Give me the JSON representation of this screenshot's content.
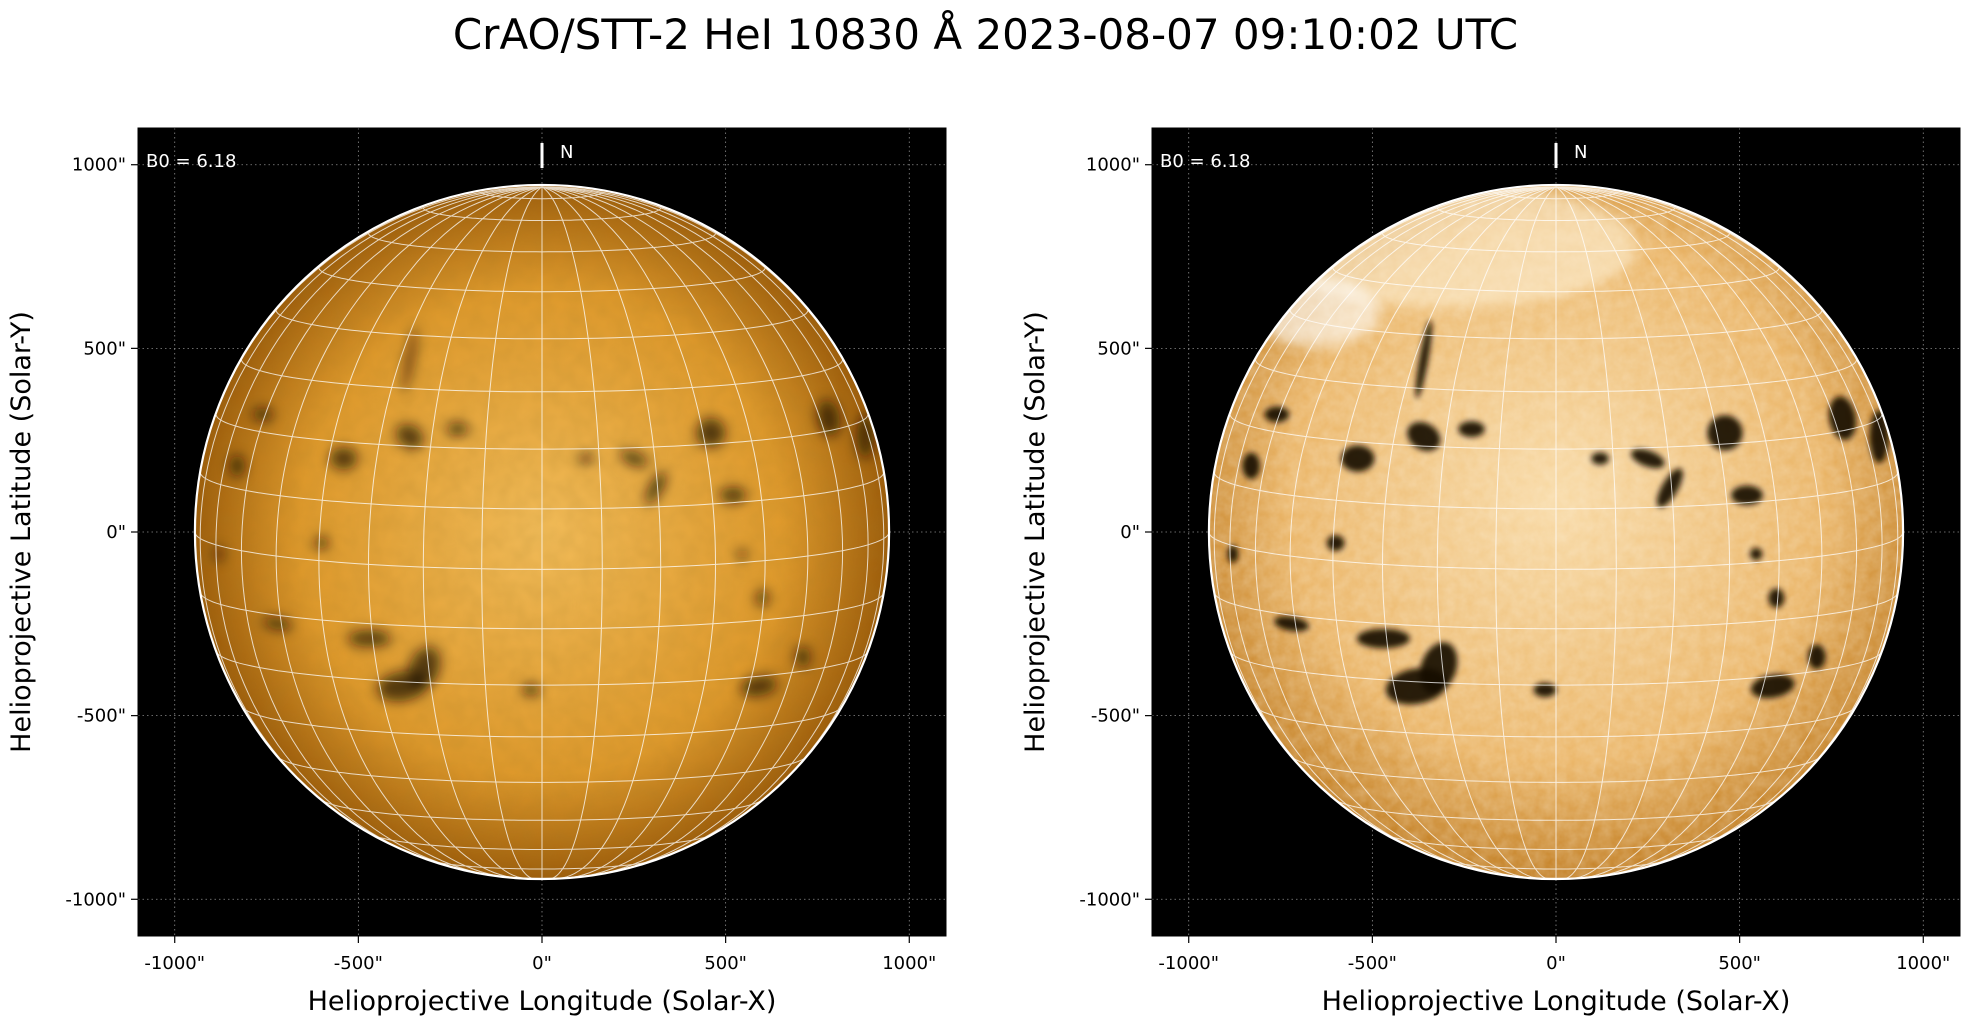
{
  "title": "CrAO/STT-2 HeI 10830 Å 2023-08-07 09:10:02 UTC",
  "panels": [
    {
      "id": "left",
      "xlabel": "Helioprojective Longitude (Solar-X)",
      "ylabel": "Helioprojective Latitude (Solar-Y)",
      "b0_label": "B0 = 6.18",
      "north_label": "N",
      "x_ticks": [
        "-1000\"",
        "-500\"",
        "0\"",
        "500\"",
        "1000\""
      ],
      "y_ticks": [
        "1000\"",
        "500\"",
        "0\"",
        "-500\"",
        "-1000\""
      ],
      "style": "smooth"
    },
    {
      "id": "right",
      "xlabel": "Helioprojective Longitude (Solar-X)",
      "ylabel": "Helioprojective Latitude (Solar-Y)",
      "b0_label": "B0 = 6.18",
      "north_label": "N",
      "x_ticks": [
        "-1000\"",
        "-500\"",
        "0\"",
        "500\"",
        "1000\""
      ],
      "y_ticks": [
        "1000\"",
        "500\"",
        "0\"",
        "-500\"",
        "-1000\""
      ],
      "style": "enhanced"
    }
  ],
  "axis_range": {
    "x": [
      -1100,
      1100
    ],
    "y": [
      -1100,
      1100
    ]
  },
  "solar_radius_arcsec": 945,
  "b0_deg": 6.18,
  "colors": {
    "disk_center": "#f2b24a",
    "disk_edge": "#a8650d",
    "enhanced_center": "#f7d29a",
    "enhanced_edge": "#c07a1c",
    "filament": "#1a0d02",
    "grid": "#ffffff",
    "background": "#000000"
  }
}
